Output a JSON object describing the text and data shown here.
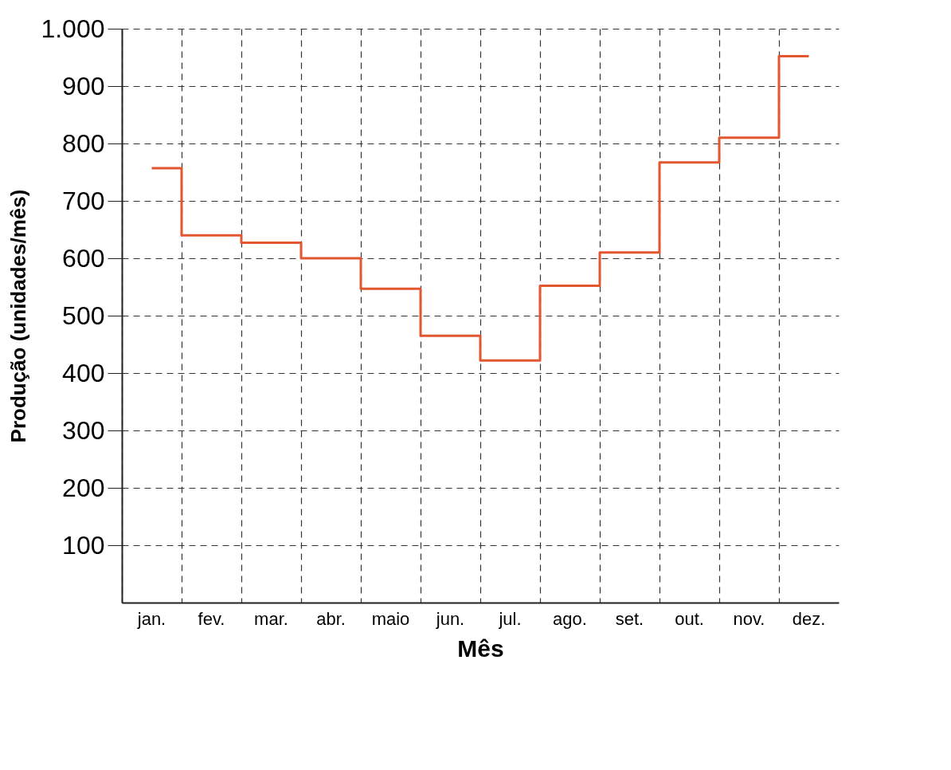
{
  "chart_data": {
    "type": "step",
    "xlabel": "Mês",
    "ylabel": "Produção (unidades/mês)",
    "categories": [
      "jan.",
      "fev.",
      "mar.",
      "abr.",
      "maio",
      "jun.",
      "jul.",
      "ago.",
      "set.",
      "out.",
      "nov.",
      "dez."
    ],
    "series": [
      {
        "color": "#e2572f",
        "values": [
          757,
          640,
          627,
          600,
          547,
          465,
          422,
          552,
          610,
          767,
          810,
          952
        ]
      }
    ],
    "ylim": [
      0,
      1000
    ],
    "yticks": [
      100,
      200,
      300,
      400,
      500,
      600,
      700,
      800,
      900,
      {
        "value": 1000,
        "label": "1.000"
      }
    ],
    "grid": true,
    "line_style": "solid"
  }
}
